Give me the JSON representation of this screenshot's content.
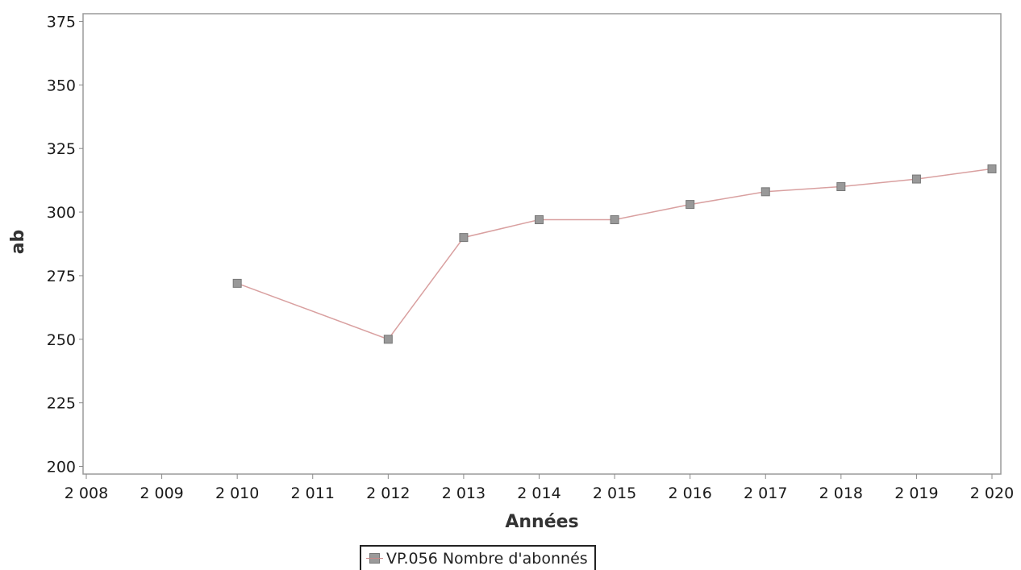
{
  "chart_data": {
    "type": "line",
    "xlabel": "Années",
    "ylabel": "ab",
    "xlim": [
      2008,
      2020
    ],
    "ylim": [
      197,
      378
    ],
    "x_ticks": [
      "2 008",
      "2 009",
      "2 010",
      "2 011",
      "2 012",
      "2 013",
      "2 014",
      "2 015",
      "2 016",
      "2 017",
      "2 018",
      "2 019",
      "2 020"
    ],
    "y_ticks": [
      "200",
      "225",
      "250",
      "275",
      "300",
      "325",
      "350",
      "375"
    ],
    "grid": false,
    "legend_position": "bottom-center",
    "series": [
      {
        "name": "VP.056 Nombre d'abonnés",
        "color": "#999999",
        "line_color": "#d9a0a0",
        "x": [
          2010,
          2012,
          2013,
          2014,
          2015,
          2016,
          2017,
          2018,
          2019,
          2020
        ],
        "values": [
          272,
          250,
          290,
          297,
          297,
          303,
          308,
          310,
          313,
          317
        ]
      }
    ]
  }
}
